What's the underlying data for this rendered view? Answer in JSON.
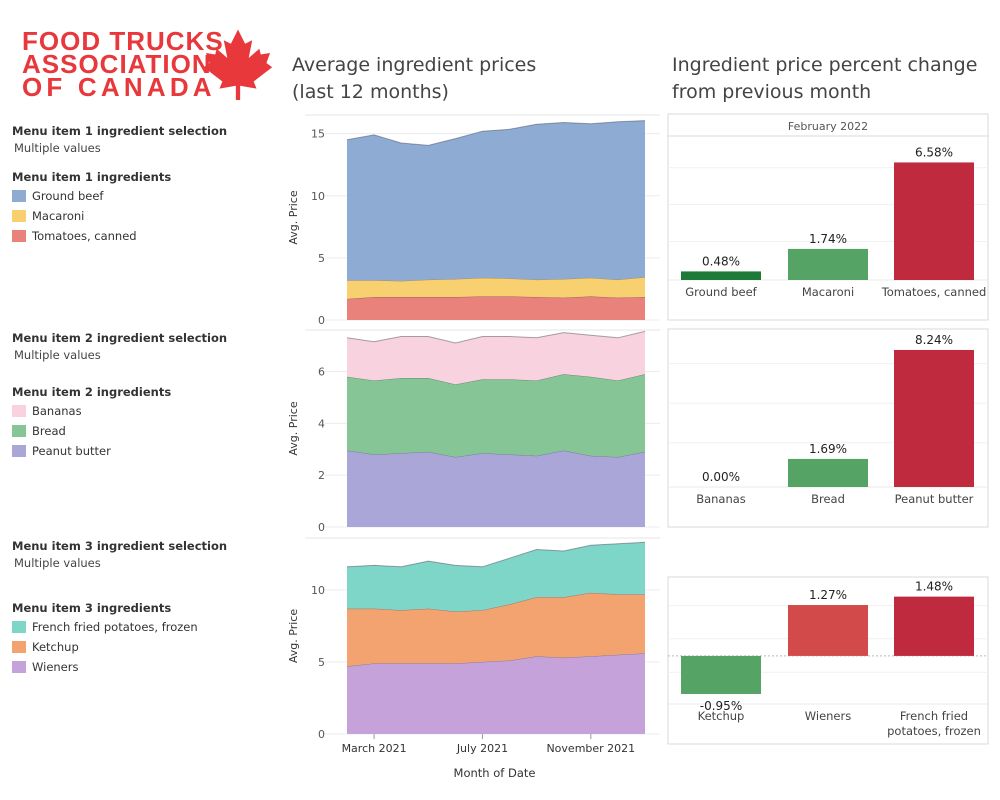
{
  "logo": {
    "lines": [
      "FOOD TRUCKS",
      "ASSOCIATION",
      "OF CANADA"
    ],
    "color": "#e8383b"
  },
  "titles": {
    "left": [
      "Average ingredient prices",
      "(last 12 months)"
    ],
    "right": [
      "Ingredient price percent change",
      "from previous month"
    ]
  },
  "panels": [
    {
      "selection_label": "Menu item 1 ingredient selection",
      "selection_value": "Multiple values",
      "legend_title": "Menu item 1 ingredients",
      "legend": [
        {
          "name": "Ground beef",
          "color": "#8eabd3"
        },
        {
          "name": "Macaroni",
          "color": "#f8d06f"
        },
        {
          "name": "Tomatoes, canned",
          "color": "#e9827a"
        }
      ]
    },
    {
      "selection_label": "Menu item 2 ingredient selection",
      "selection_value": "Multiple values",
      "legend_title": "Menu item 2 ingredients",
      "legend": [
        {
          "name": "Bananas",
          "color": "#f8d3df"
        },
        {
          "name": "Bread",
          "color": "#86c595"
        },
        {
          "name": "Peanut butter",
          "color": "#aaa6d8"
        }
      ]
    },
    {
      "selection_label": "Menu item 3 ingredient selection",
      "selection_value": "Multiple values",
      "legend_title": "Menu item 3 ingredients",
      "legend": [
        {
          "name": "French fried potatoes, frozen",
          "color": "#7ed6c8"
        },
        {
          "name": "Ketchup",
          "color": "#f2a36f"
        },
        {
          "name": "Wieners",
          "color": "#c5a3da"
        }
      ]
    }
  ],
  "chart_data": [
    {
      "type": "area",
      "ylabel": "Avg. Price",
      "ylim": [
        0,
        16.5
      ],
      "yticks": [
        0,
        5,
        10,
        15
      ],
      "grid": true,
      "series": [
        {
          "name": "Tomatoes, canned",
          "color": "#e9827a",
          "values": [
            1.7,
            1.85,
            1.85,
            1.85,
            1.85,
            1.9,
            1.9,
            1.85,
            1.8,
            1.9,
            1.8,
            1.85
          ]
        },
        {
          "name": "Macaroni",
          "color": "#f8d06f",
          "values": [
            1.5,
            1.35,
            1.3,
            1.4,
            1.45,
            1.5,
            1.45,
            1.4,
            1.5,
            1.5,
            1.45,
            1.6
          ]
        },
        {
          "name": "Ground beef",
          "color": "#8eabd3",
          "values": [
            11.3,
            11.7,
            11.1,
            10.8,
            11.3,
            11.8,
            12.0,
            12.5,
            12.6,
            12.4,
            12.7,
            12.6
          ]
        }
      ]
    },
    {
      "type": "area",
      "ylabel": "Avg. Price",
      "ylim": [
        0,
        7.6
      ],
      "yticks": [
        0,
        2,
        4,
        6
      ],
      "grid": true,
      "series": [
        {
          "name": "Peanut butter",
          "color": "#aaa6d8",
          "values": [
            2.95,
            2.8,
            2.85,
            2.9,
            2.7,
            2.85,
            2.8,
            2.75,
            2.95,
            2.75,
            2.7,
            2.9
          ]
        },
        {
          "name": "Bread",
          "color": "#86c595",
          "values": [
            2.85,
            2.85,
            2.9,
            2.85,
            2.8,
            2.85,
            2.9,
            2.9,
            2.95,
            3.05,
            2.95,
            3.0
          ]
        },
        {
          "name": "Bananas",
          "color": "#f8d3df",
          "values": [
            1.5,
            1.5,
            1.6,
            1.6,
            1.6,
            1.65,
            1.65,
            1.65,
            1.6,
            1.6,
            1.65,
            1.65
          ]
        }
      ]
    },
    {
      "type": "area",
      "ylabel": "Avg. Price",
      "ylim": [
        0,
        13.6
      ],
      "yticks": [
        0,
        5,
        10
      ],
      "xticks": [
        {
          "label": "March 2021",
          "index": 1
        },
        {
          "label": "July 2021",
          "index": 5
        },
        {
          "label": "November 2021",
          "index": 9
        }
      ],
      "xlabel": "Month of Date",
      "grid": true,
      "series": [
        {
          "name": "Wieners",
          "color": "#c5a3da",
          "values": [
            4.7,
            4.9,
            4.9,
            4.9,
            4.9,
            5.0,
            5.1,
            5.4,
            5.3,
            5.4,
            5.5,
            5.6
          ]
        },
        {
          "name": "Ketchup",
          "color": "#f2a36f",
          "values": [
            4.0,
            3.8,
            3.7,
            3.8,
            3.6,
            3.6,
            3.9,
            4.1,
            4.2,
            4.4,
            4.2,
            4.1
          ]
        },
        {
          "name": "French fried potatoes, frozen",
          "color": "#7ed6c8",
          "values": [
            2.9,
            3.0,
            3.0,
            3.3,
            3.2,
            3.0,
            3.2,
            3.3,
            3.2,
            3.3,
            3.5,
            3.6
          ]
        }
      ]
    },
    {
      "type": "bar",
      "header": "February 2022",
      "categories": [
        "Ground beef",
        "Macaroni",
        "Tomatoes, canned"
      ],
      "values": [
        0.48,
        1.74,
        6.58
      ],
      "labels": [
        "0.48%",
        "1.74%",
        "6.58%"
      ],
      "colors": [
        "#1f7a3a",
        "#55a465",
        "#c02a3f"
      ],
      "ylim": [
        0,
        7.5
      ]
    },
    {
      "type": "bar",
      "categories": [
        "Bananas",
        "Bread",
        "Peanut butter"
      ],
      "values": [
        0.0,
        1.69,
        8.24
      ],
      "labels": [
        "0.00%",
        "1.69%",
        "8.24%"
      ],
      "colors": [
        "#ffffff",
        "#55a465",
        "#c02a3f"
      ],
      "ylim": [
        0,
        8.9
      ]
    },
    {
      "type": "bar",
      "categories": [
        "Ketchup",
        "Wieners",
        "French fried potatoes, frozen"
      ],
      "category_lines": [
        [
          "Ketchup"
        ],
        [
          "Wieners"
        ],
        [
          "French fried",
          "potatoes, frozen"
        ]
      ],
      "values": [
        -0.95,
        1.27,
        1.48
      ],
      "labels": [
        "-0.95%",
        "1.27%",
        "1.48%"
      ],
      "colors": [
        "#55a465",
        "#d34a4b",
        "#c02a3f"
      ],
      "ylim": [
        -1.2,
        1.72
      ]
    }
  ]
}
